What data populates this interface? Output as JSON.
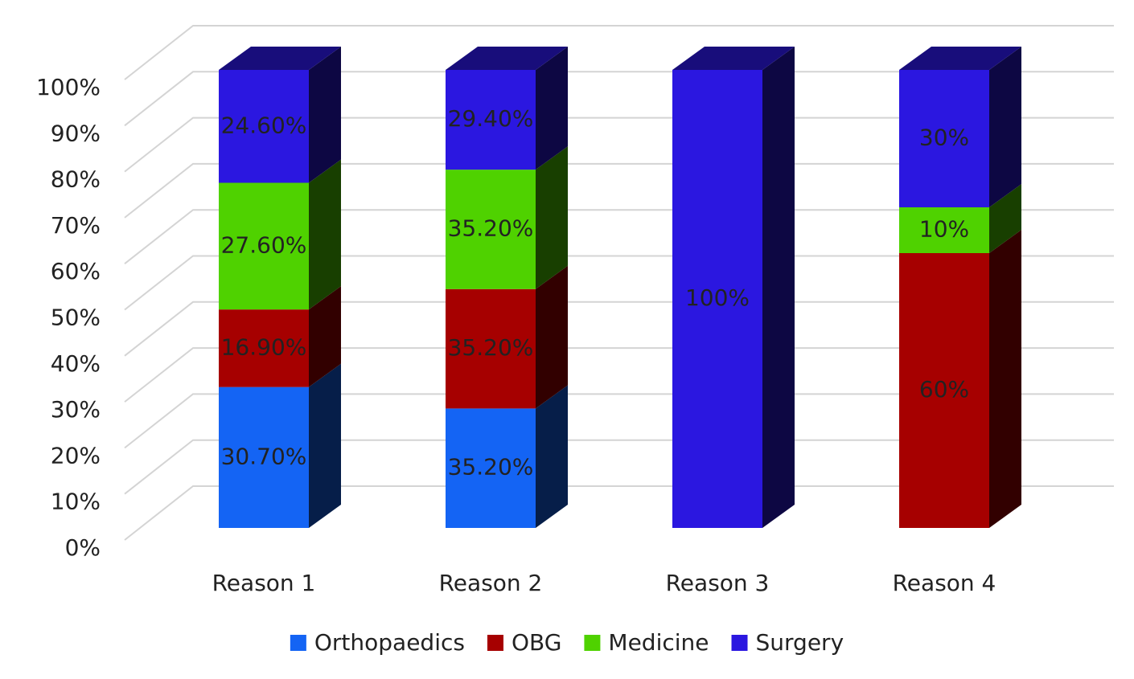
{
  "chart_data": {
    "type": "bar",
    "stacking": "percent",
    "categories": [
      "Reason 1",
      "Reason 2",
      "Reason 3",
      "Reason 4"
    ],
    "series": [
      {
        "name": "Orthopaedics",
        "color": "#1464f4",
        "values": [
          30.7,
          35.2,
          null,
          null
        ],
        "value_labels": [
          "30.70%",
          "35.20%",
          null,
          null
        ]
      },
      {
        "name": "OBG",
        "color": "#a60000",
        "values": [
          16.9,
          35.2,
          null,
          60
        ],
        "value_labels": [
          "16.90%",
          "35.20%",
          null,
          "60%"
        ]
      },
      {
        "name": "Medicine",
        "color": "#4fd200",
        "values": [
          27.6,
          35.2,
          null,
          10
        ],
        "value_labels": [
          "27.60%",
          "35.20%",
          null,
          "10%"
        ]
      },
      {
        "name": "Surgery",
        "color": "#2b17e0",
        "values": [
          24.6,
          29.4,
          100,
          30
        ],
        "value_labels": [
          "24.60%",
          "29.40%",
          "100%",
          "30%"
        ]
      }
    ],
    "ylim": [
      0,
      100
    ],
    "yticks": [
      {
        "value": 0,
        "label": "0%"
      },
      {
        "value": 10,
        "label": "10%"
      },
      {
        "value": 20,
        "label": "20%"
      },
      {
        "value": 30,
        "label": "30%"
      },
      {
        "value": 40,
        "label": "40%"
      },
      {
        "value": 50,
        "label": "50%"
      },
      {
        "value": 60,
        "label": "60%"
      },
      {
        "value": 70,
        "label": "70%"
      },
      {
        "value": 80,
        "label": "80%"
      },
      {
        "value": 90,
        "label": "90%"
      },
      {
        "value": 100,
        "label": "100%"
      }
    ],
    "grid": true,
    "legend": "bottom"
  }
}
